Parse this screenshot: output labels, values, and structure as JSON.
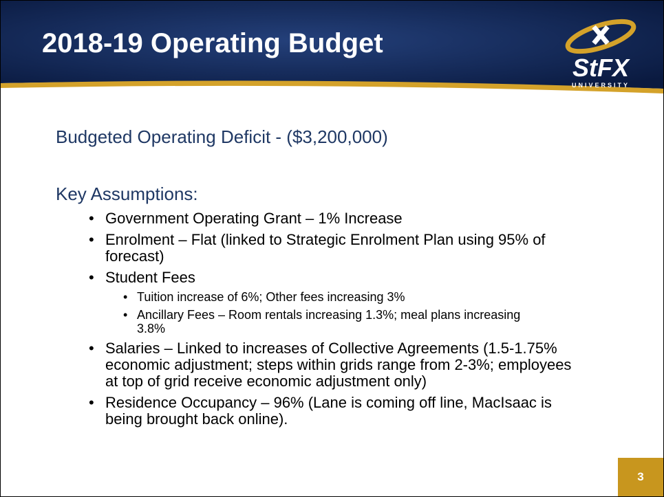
{
  "header": {
    "title": "2018-19 Operating Budget",
    "logo": {
      "wordmark": "StFX",
      "subtext": "UNIVERSITY"
    }
  },
  "subtitle": "Budgeted Operating Deficit - ($3,200,000)",
  "section_title": "Key Assumptions:",
  "bullets": [
    {
      "text": "Government Operating Grant – 1% Increase"
    },
    {
      "text": "Enrolment – Flat (linked to Strategic Enrolment Plan using 95% of forecast)"
    },
    {
      "text": "Student Fees",
      "children": [
        "Tuition increase of 6%; Other fees increasing 3%",
        "Ancillary Fees – Room rentals increasing 1.3%; meal plans increasing 3.8%"
      ]
    },
    {
      "text": "Salaries – Linked to increases of Collective Agreements (1.5-1.75% economic adjustment; steps within grids range from 2-3%; employees at top of grid receive economic adjustment only)"
    },
    {
      "text": "Residence Occupancy – 96% (Lane is coming off line, MacIsaac is being brought back online)."
    }
  ],
  "page_number": "3"
}
